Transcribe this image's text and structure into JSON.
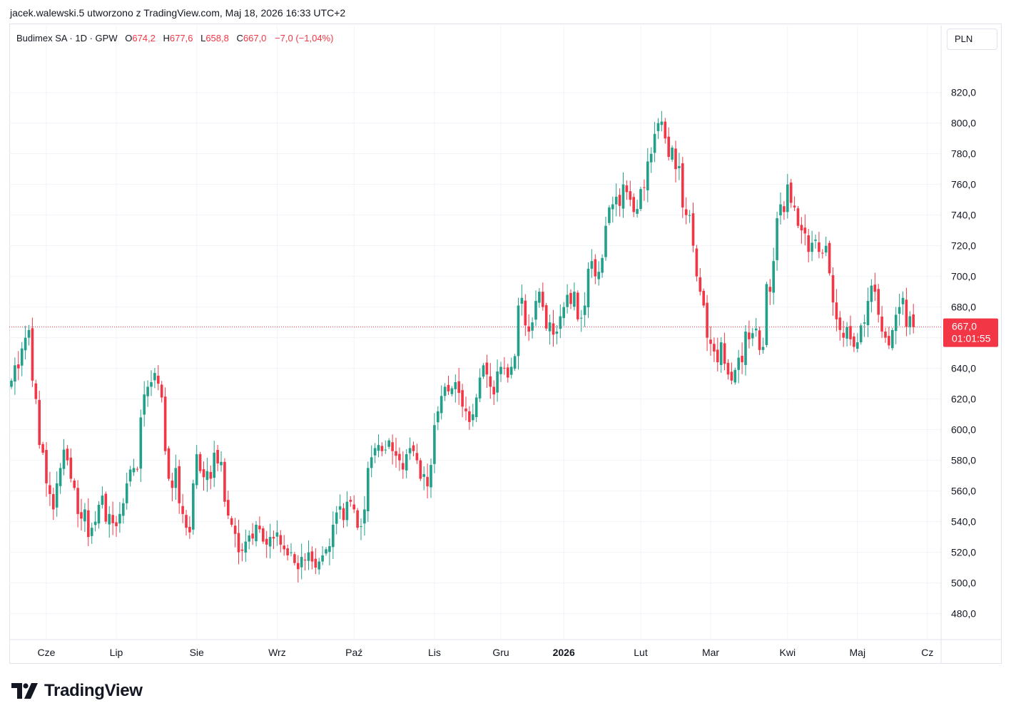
{
  "header": {
    "byline": "jacek.walewski.5 utworzono z TradingView.com, Maj 18, 2026 16:33 UTC+2"
  },
  "legend": {
    "symbol": "Budimex SA · 1D · GPW",
    "open_label": "O",
    "open": "674,2",
    "high_label": "H",
    "high": "677,6",
    "low_label": "L",
    "low": "658,8",
    "close_label": "C",
    "close": "667,0",
    "change": "−7,0 (−1,04%)"
  },
  "currency": "PLN",
  "last_price": {
    "value": "667,0",
    "countdown": "01:01:55"
  },
  "brand": "TradingView",
  "colors": {
    "up": "#22a08a",
    "down": "#f23645",
    "grid": "#f0f3fa",
    "text": "#131722"
  },
  "chart_data": {
    "type": "candlestick",
    "y_ticks": [
      480,
      500,
      520,
      540,
      560,
      580,
      600,
      620,
      640,
      660,
      680,
      700,
      720,
      740,
      760,
      780,
      800,
      820
    ],
    "y_tick_labels": [
      "480,0",
      "500,0",
      "520,0",
      "540,0",
      "560,0",
      "580,0",
      "600,0",
      "620,0",
      "640,0",
      "",
      "680,0",
      "700,0",
      "720,0",
      "740,0",
      "760,0",
      "780,0",
      "800,0",
      "820,0"
    ],
    "ylim": [
      464,
      838
    ],
    "x_labels": [
      {
        "label": "Cze",
        "day": 10
      },
      {
        "label": "Lip",
        "day": 30
      },
      {
        "label": "Sie",
        "day": 53
      },
      {
        "label": "Wrz",
        "day": 76
      },
      {
        "label": "Paź",
        "day": 98
      },
      {
        "label": "Lis",
        "day": 121
      },
      {
        "label": "Gru",
        "day": 140
      },
      {
        "label": "2026",
        "day": 158,
        "bold": true
      },
      {
        "label": "Lut",
        "day": 180
      },
      {
        "label": "Mar",
        "day": 200
      },
      {
        "label": "Kwi",
        "day": 222
      },
      {
        "label": "Maj",
        "day": 242
      },
      {
        "label": "Cz",
        "day": 262
      }
    ],
    "last_price": 667.0,
    "closes": [
      632,
      642,
      640,
      653,
      660,
      665,
      632,
      620,
      590,
      585,
      565,
      558,
      548,
      565,
      575,
      587,
      580,
      568,
      562,
      545,
      542,
      548,
      530,
      536,
      540,
      551,
      557,
      540,
      545,
      539,
      537,
      545,
      552,
      565,
      574,
      575,
      574,
      608,
      623,
      628,
      631,
      637,
      630,
      621,
      586,
      568,
      562,
      575,
      552,
      545,
      536,
      533,
      565,
      584,
      573,
      569,
      573,
      568,
      585,
      578,
      579,
      553,
      544,
      538,
      532,
      520,
      521,
      527,
      531,
      529,
      538,
      535,
      527,
      525,
      530,
      529,
      533,
      525,
      522,
      518,
      520,
      513,
      509,
      517,
      515,
      520,
      514,
      510,
      514,
      518,
      522,
      524,
      538,
      546,
      550,
      541,
      553,
      553,
      548,
      536,
      537,
      548,
      575,
      582,
      588,
      590,
      586,
      587,
      593,
      586,
      583,
      580,
      574,
      584,
      588,
      586,
      580,
      568,
      571,
      563,
      577,
      603,
      612,
      622,
      628,
      625,
      627,
      631,
      624,
      615,
      612,
      605,
      610,
      621,
      634,
      642,
      636,
      628,
      623,
      638,
      641,
      640,
      634,
      641,
      648,
      681,
      686,
      668,
      664,
      670,
      684,
      690,
      680,
      666,
      670,
      662,
      664,
      674,
      680,
      688,
      682,
      690,
      672,
      673,
      681,
      705,
      710,
      700,
      703,
      712,
      733,
      745,
      747,
      752,
      746,
      760,
      755,
      750,
      742,
      744,
      757,
      758,
      775,
      780,
      793,
      800,
      801,
      790,
      778,
      784,
      770,
      772,
      745,
      740,
      740,
      720,
      700,
      690,
      681,
      660,
      656,
      651,
      644,
      657,
      643,
      636,
      632,
      639,
      647,
      644,
      664,
      659,
      663,
      666,
      652,
      654,
      695,
      690,
      710,
      738,
      747,
      742,
      760,
      748,
      745,
      733,
      730,
      728,
      716,
      722,
      724,
      716,
      715,
      720,
      702,
      683,
      672,
      665,
      660,
      667,
      659,
      654,
      657,
      668,
      670,
      684,
      694,
      690,
      675,
      664,
      660,
      655,
      665,
      675,
      680,
      686,
      667,
      674,
      667
    ]
  }
}
